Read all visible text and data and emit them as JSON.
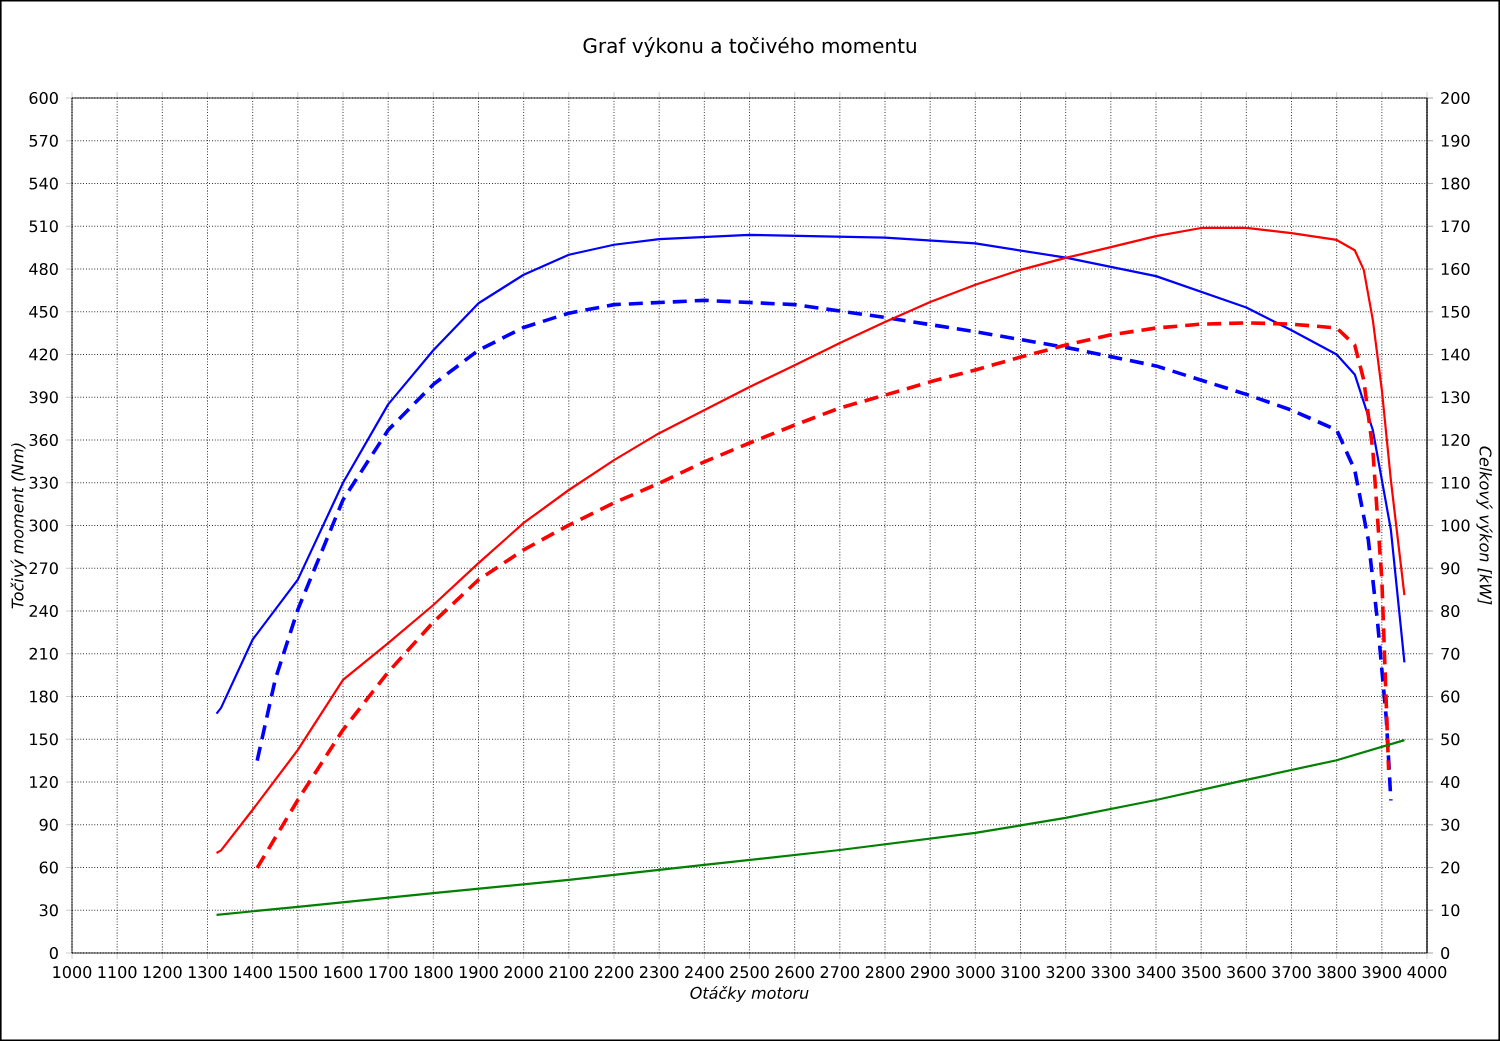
{
  "chart_data": {
    "type": "line",
    "title": "Graf výkonu a točivého momentu",
    "xlabel": "Otáčky motoru",
    "ylabel": "Točivý moment (Nm)",
    "y2label": "Celkový výkon [kW]",
    "xlim": [
      1000,
      4000
    ],
    "xticks": [
      1000,
      1100,
      1200,
      1300,
      1400,
      1500,
      1600,
      1700,
      1800,
      1900,
      2000,
      2100,
      2200,
      2300,
      2400,
      2500,
      2600,
      2700,
      2800,
      2900,
      3000,
      3100,
      3200,
      3300,
      3400,
      3500,
      3600,
      3700,
      3800,
      3900,
      4000
    ],
    "ylim": [
      0,
      600
    ],
    "yticks": [
      0,
      30,
      60,
      90,
      120,
      150,
      180,
      210,
      240,
      270,
      300,
      330,
      360,
      390,
      420,
      450,
      480,
      510,
      540,
      570,
      600
    ],
    "y2lim": [
      0,
      200
    ],
    "y2ticks": [
      0,
      10,
      20,
      30,
      40,
      50,
      60,
      70,
      80,
      90,
      100,
      110,
      120,
      130,
      140,
      150,
      160,
      170,
      180,
      190,
      200
    ],
    "grid": true,
    "series": [
      {
        "color": "#0000ff",
        "line_style": "solid",
        "axis": "y",
        "x": [
          1320,
          1330,
          1400,
          1500,
          1600,
          1700,
          1800,
          1900,
          2000,
          2100,
          2200,
          2300,
          2500,
          2800,
          3000,
          3200,
          3400,
          3600,
          3700,
          3800,
          3840,
          3880,
          3920,
          3950
        ],
        "values": [
          168,
          172,
          220,
          262,
          330,
          385,
          423,
          456,
          476,
          490,
          497,
          501,
          504,
          502,
          498,
          488,
          475,
          453,
          437,
          420,
          406,
          367,
          297,
          204
        ]
      },
      {
        "color": "#0000ff",
        "line_style": "dashed",
        "axis": "y",
        "x": [
          1410,
          1450,
          1500,
          1600,
          1700,
          1800,
          1900,
          2000,
          2100,
          2200,
          2400,
          2600,
          2800,
          3000,
          3200,
          3400,
          3600,
          3700,
          3800,
          3840,
          3870,
          3890,
          3910,
          3920
        ],
        "values": [
          135,
          192,
          241,
          318,
          367,
          399,
          423,
          439,
          449,
          455,
          458,
          455,
          446,
          436,
          425,
          412,
          392,
          381,
          367,
          339,
          290,
          234,
          164,
          107
        ]
      },
      {
        "color": "#ff0000",
        "line_style": "solid",
        "axis": "y2",
        "x": [
          1320,
          1330,
          1400,
          1500,
          1600,
          1700,
          1800,
          1900,
          2000,
          2100,
          2200,
          2300,
          2400,
          2500,
          2600,
          2700,
          2800,
          2900,
          3000,
          3100,
          3200,
          3300,
          3400,
          3500,
          3600,
          3700,
          3800,
          3840,
          3860,
          3880,
          3900,
          3920,
          3950
        ],
        "values": [
          23.4,
          24,
          33.5,
          47.5,
          63.9,
          72.5,
          81.4,
          91.2,
          100.6,
          108.3,
          115.3,
          121.6,
          127,
          132.4,
          137.5,
          142.7,
          147.6,
          152.3,
          156.3,
          159.8,
          162.6,
          165.1,
          167.7,
          169.6,
          169.6,
          168.4,
          166.8,
          164.4,
          159.8,
          148.1,
          131.7,
          110.6,
          83.7
        ]
      },
      {
        "color": "#ff0000",
        "line_style": "dashed",
        "axis": "y2",
        "x": [
          1410,
          1500,
          1600,
          1700,
          1800,
          1900,
          2000,
          2100,
          2200,
          2300,
          2400,
          2500,
          2600,
          2700,
          2800,
          2900,
          3000,
          3100,
          3200,
          3300,
          3400,
          3500,
          3600,
          3700,
          3800,
          3840,
          3860,
          3880,
          3900,
          3915
        ],
        "values": [
          19.9,
          35.8,
          52.2,
          65.7,
          77.4,
          87.3,
          94.3,
          100.1,
          105.3,
          109.9,
          114.9,
          119.3,
          123.5,
          127.5,
          130.5,
          133.6,
          136.4,
          139.4,
          142.2,
          144.6,
          146.2,
          147.1,
          147.4,
          147.1,
          146.2,
          142.2,
          134,
          117.7,
          87.3,
          42.8
        ]
      },
      {
        "color": "#008000",
        "line_style": "solid",
        "axis": "y2",
        "x": [
          1320,
          1500,
          1800,
          2100,
          2400,
          2700,
          3000,
          3200,
          3400,
          3600,
          3800,
          3950
        ],
        "values": [
          8.9,
          10.8,
          14,
          17.1,
          20.6,
          24.1,
          28.1,
          31.6,
          35.8,
          40.5,
          45.1,
          49.8
        ]
      }
    ]
  }
}
